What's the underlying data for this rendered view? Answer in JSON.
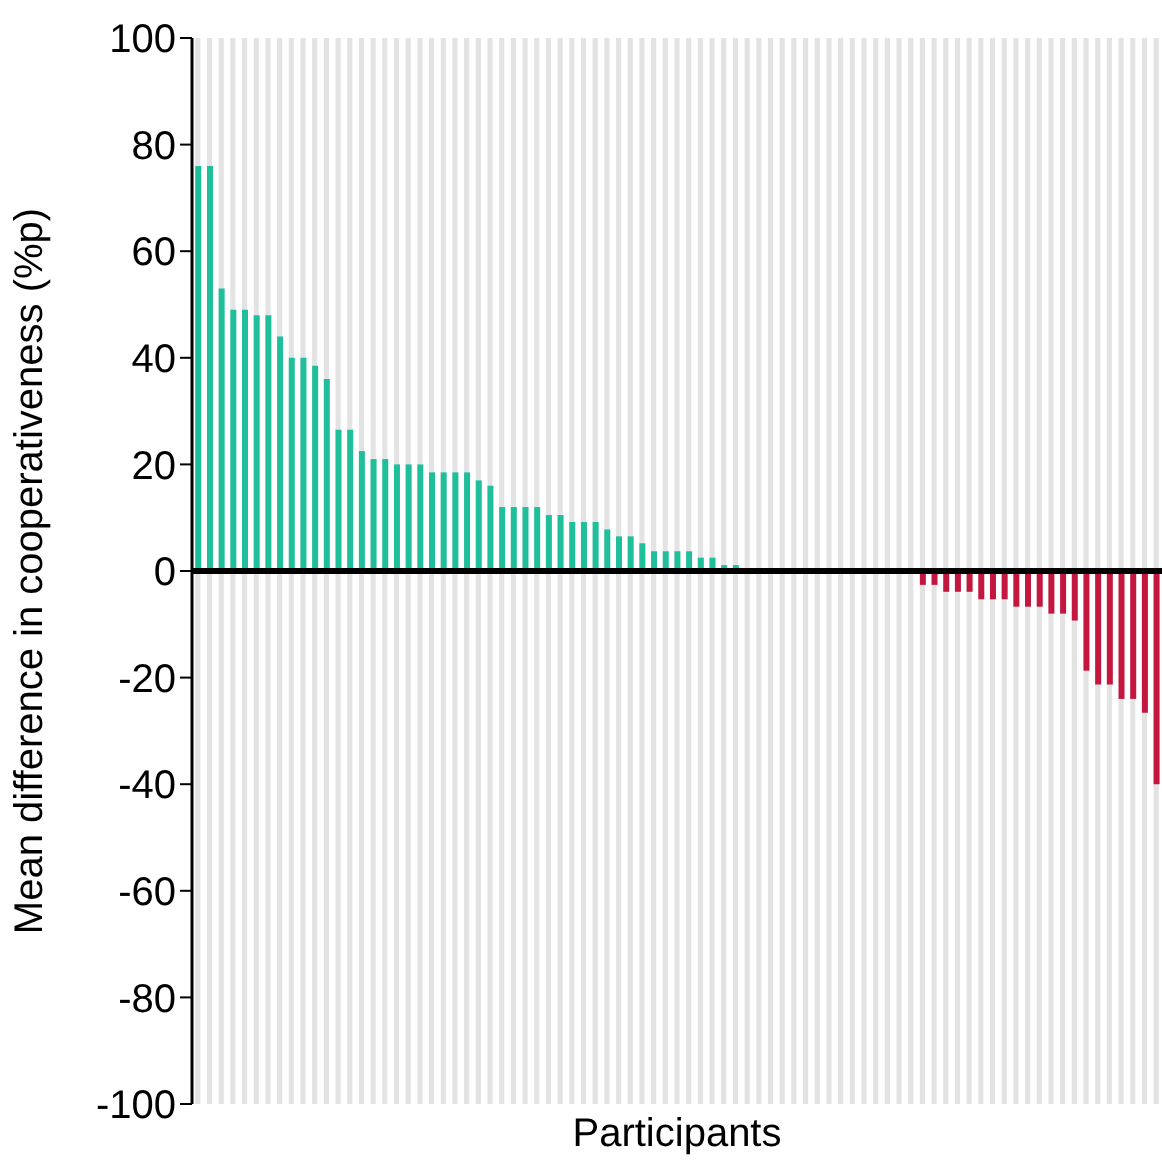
{
  "chart_data": {
    "type": "bar",
    "xlabel": "Participants",
    "ylabel": "Mean difference in cooperativeness (%p)",
    "categories": [
      null,
      null,
      null,
      null,
      null,
      null,
      null,
      null,
      null,
      null,
      null,
      null,
      null,
      null,
      null,
      null,
      null,
      null,
      null,
      null,
      null,
      null,
      null,
      null,
      null,
      null,
      null,
      null,
      null,
      null,
      null,
      null,
      null,
      null,
      null,
      null,
      null,
      null,
      null,
      null,
      null,
      null,
      null,
      null,
      null,
      null,
      null,
      null,
      null,
      null,
      null,
      null,
      null,
      null,
      null,
      null,
      null,
      null,
      null,
      null,
      null,
      null,
      null,
      null,
      null,
      null,
      null,
      null,
      null,
      null,
      null,
      null,
      null,
      null,
      null,
      null,
      null,
      null,
      null,
      null,
      null,
      null,
      null
    ],
    "values": [
      76,
      76,
      53,
      49,
      49,
      48,
      48,
      44,
      40,
      40,
      38.5,
      36,
      26.5,
      26.5,
      22.5,
      21,
      21,
      20,
      20,
      20,
      18.5,
      18.5,
      18.5,
      18.5,
      17,
      16,
      12,
      12,
      12,
      12,
      10.5,
      10.5,
      9.2,
      9.2,
      9.2,
      7.8,
      6.5,
      6.5,
      5.2,
      3.7,
      3.7,
      3.7,
      3.7,
      2.5,
      2.5,
      1.1,
      1.1,
      0,
      0,
      0,
      0,
      0,
      0,
      0,
      0,
      0,
      0,
      0,
      0,
      0,
      0,
      0,
      -2.6,
      -2.6,
      -3.9,
      -3.9,
      -3.9,
      -5.3,
      -5.3,
      -5.3,
      -6.7,
      -6.7,
      -6.7,
      -8,
      -8,
      -9.3,
      -18.7,
      -21.3,
      -21.3,
      -24,
      -24,
      -26.6,
      -40
    ],
    "colors": [
      "#1fbf9b",
      "#1fbf9b",
      "#1fbf9b",
      "#1fbf9b",
      "#1fbf9b",
      "#1fbf9b",
      "#1fbf9b",
      "#1fbf9b",
      "#1fbf9b",
      "#1fbf9b",
      "#1fbf9b",
      "#1fbf9b",
      "#1fbf9b",
      "#1fbf9b",
      "#1fbf9b",
      "#1fbf9b",
      "#1fbf9b",
      "#1fbf9b",
      "#1fbf9b",
      "#1fbf9b",
      "#1fbf9b",
      "#1fbf9b",
      "#1fbf9b",
      "#1fbf9b",
      "#1fbf9b",
      "#1fbf9b",
      "#1fbf9b",
      "#1fbf9b",
      "#1fbf9b",
      "#1fbf9b",
      "#1fbf9b",
      "#1fbf9b",
      "#1fbf9b",
      "#1fbf9b",
      "#1fbf9b",
      "#1fbf9b",
      "#1fbf9b",
      "#1fbf9b",
      "#1fbf9b",
      "#1fbf9b",
      "#1fbf9b",
      "#1fbf9b",
      "#1fbf9b",
      "#1fbf9b",
      "#1fbf9b",
      "#1fbf9b",
      "#1fbf9b",
      "#1fbf9b",
      "#1fbf9b",
      "#1fbf9b",
      "#1fbf9b",
      "#1fbf9b",
      "#1fbf9b",
      "#1fbf9b",
      "#1fbf9b",
      "#1fbf9b",
      "#1fbf9b",
      "#1fbf9b",
      "#1fbf9b",
      "#1fbf9b",
      "#1fbf9b",
      "#1fbf9b",
      "#c4173f",
      "#c4173f",
      "#c4173f",
      "#c4173f",
      "#c4173f",
      "#c4173f",
      "#c4173f",
      "#c4173f",
      "#c4173f",
      "#c4173f",
      "#c4173f",
      "#c4173f",
      "#c4173f",
      "#c4173f",
      "#c4173f",
      "#c4173f",
      "#c4173f",
      "#c4173f",
      "#c4173f",
      "#c4173f",
      "#c4173f"
    ],
    "ylim": [
      -100,
      100
    ],
    "yticks": [
      -100,
      -80,
      -60,
      -40,
      -20,
      0,
      20,
      40,
      60,
      80,
      100
    ],
    "ref_lines": [
      {
        "axis": "y",
        "value": 0,
        "color": "#000000"
      }
    ],
    "tick_labels": "y",
    "grid": false,
    "legend": false
  }
}
